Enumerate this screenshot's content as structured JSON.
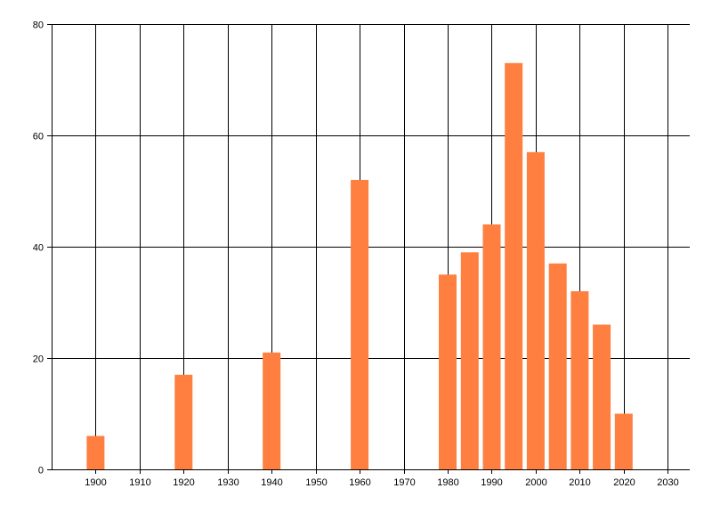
{
  "chart_data": {
    "type": "bar",
    "title": "",
    "xlabel": "",
    "ylabel": "",
    "x": [
      1900,
      1920,
      1940,
      1960,
      1980,
      1985,
      1990,
      1995,
      2000,
      2005,
      2010,
      2015,
      2020
    ],
    "values": [
      6,
      17,
      21,
      52,
      35,
      39,
      44,
      73,
      57,
      37,
      32,
      26,
      10
    ],
    "xlim": [
      1890,
      2035
    ],
    "ylim": [
      0,
      80
    ],
    "x_ticks": [
      1900,
      1910,
      1920,
      1930,
      1940,
      1950,
      1960,
      1970,
      1980,
      1990,
      2000,
      2010,
      2020,
      2030
    ],
    "y_ticks": [
      0,
      20,
      40,
      60,
      80
    ],
    "bar_color": "#FF7F40",
    "grid": true,
    "legend": "none"
  }
}
